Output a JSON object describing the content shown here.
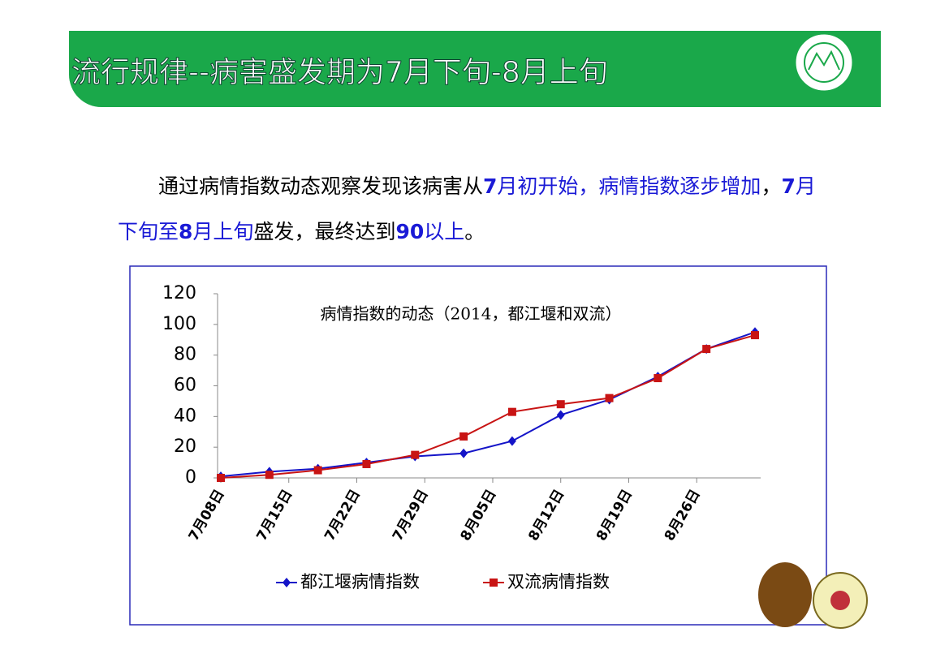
{
  "header": {
    "title": "流行规律--病害盛发期为7月下旬-8月上旬"
  },
  "body": {
    "runs": [
      {
        "text": "通过病情指数动态观察发现该病害从",
        "color": "#000000",
        "bold": false
      },
      {
        "text": "7",
        "color": "#1a1ad6",
        "bold": true
      },
      {
        "text": "月初开始，病情指数逐步增加",
        "color": "#1a1ad6",
        "bold": false
      },
      {
        "text": "，",
        "color": "#000000",
        "bold": false
      },
      {
        "text": "7",
        "color": "#1a1ad6",
        "bold": true
      },
      {
        "text": "月下旬至",
        "color": "#1a1ad6",
        "bold": false
      },
      {
        "text": "8",
        "color": "#1a1ad6",
        "bold": true
      },
      {
        "text": "月上旬",
        "color": "#1a1ad6",
        "bold": false
      },
      {
        "text": "盛发，最终达到",
        "color": "#000000",
        "bold": false
      },
      {
        "text": "90",
        "color": "#1a1ad6",
        "bold": true
      },
      {
        "text": "以上",
        "color": "#1a1ad6",
        "bold": false
      },
      {
        "text": "。",
        "color": "#000000",
        "bold": false
      }
    ]
  },
  "chart_data": {
    "type": "line",
    "title": "病情指数的动态（2014，都江堰和双流）",
    "x": [
      8,
      13,
      18,
      23,
      28,
      33,
      38,
      43,
      48,
      53,
      58,
      63
    ],
    "xlim": [
      8,
      63
    ],
    "xticks": [
      {
        "value": 8,
        "label": "7月08日"
      },
      {
        "value": 15,
        "label": "7月15日"
      },
      {
        "value": 22,
        "label": "7月22日"
      },
      {
        "value": 29,
        "label": "7月29日"
      },
      {
        "value": 36,
        "label": "8月05日"
      },
      {
        "value": 43,
        "label": "8月12日"
      },
      {
        "value": 50,
        "label": "8月19日"
      },
      {
        "value": 57,
        "label": "8月26日"
      }
    ],
    "ylim": [
      0,
      120
    ],
    "yticks": [
      0,
      20,
      40,
      60,
      80,
      100,
      120
    ],
    "series": [
      {
        "name": "都江堰病情指数",
        "color": "#1414c8",
        "marker": "diamond",
        "values": [
          1,
          4,
          6,
          10,
          14,
          16,
          24,
          41,
          51,
          66,
          84,
          95
        ]
      },
      {
        "name": "双流病情指数",
        "color": "#c81414",
        "marker": "square",
        "values": [
          0,
          2,
          5,
          9,
          15,
          27,
          43,
          48,
          52,
          65,
          84,
          93
        ]
      }
    ]
  }
}
